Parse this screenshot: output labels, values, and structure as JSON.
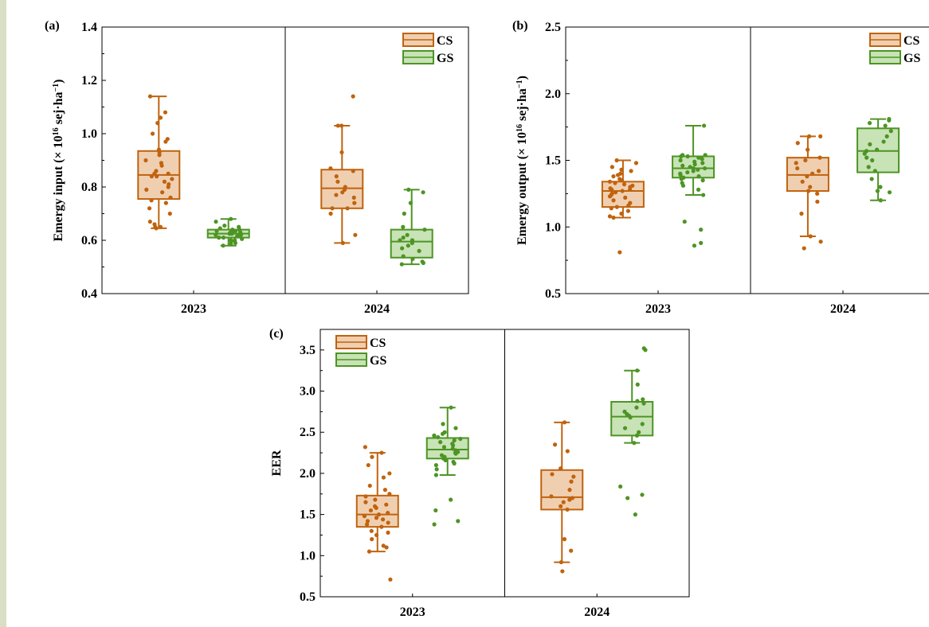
{
  "colors": {
    "CS_stroke": "#c0630e",
    "CS_fill": "#f0cfb1",
    "GS_stroke": "#4d9424",
    "GS_fill": "#c8e3b6",
    "CS_point": "#c0630e",
    "GS_point": "#4d9424"
  },
  "chart_data": [
    {
      "panel": "(a)",
      "type": "box",
      "ylabel_main": "Emergy input (× 10",
      "ylabel_exp": "16",
      "ylabel_unit": " sej·ha",
      "ylabel_unit_exp": "−1",
      "ylabel_close": ")",
      "ylim": [
        0.4,
        1.4
      ],
      "yticks": [
        0.4,
        0.6,
        0.8,
        1.0,
        1.2,
        1.4
      ],
      "ytick_labels": [
        "0.4",
        "0.6",
        "0.8",
        "1.0",
        "1.2",
        "1.4"
      ],
      "categories": [
        "2023",
        "2024"
      ],
      "legend": [
        "CS",
        "GS"
      ],
      "legend_position": "top-right",
      "series": [
        {
          "name": "CS",
          "boxes": [
            {
              "category": "2023",
              "whisker_low": 0.645,
              "q1": 0.755,
              "median": 0.845,
              "q3": 0.935,
              "whisker_high": 1.14,
              "points": [
                1.14,
                1.08,
                1.06,
                1.04,
                1.0,
                0.98,
                0.97,
                0.94,
                0.93,
                0.92,
                0.9,
                0.89,
                0.88,
                0.86,
                0.85,
                0.85,
                0.84,
                0.84,
                0.83,
                0.82,
                0.81,
                0.8,
                0.79,
                0.78,
                0.76,
                0.75,
                0.74,
                0.72,
                0.7,
                0.67,
                0.66,
                0.65,
                0.65,
                0.645
              ]
            },
            {
              "category": "2024",
              "whisker_low": 0.59,
              "q1": 0.72,
              "median": 0.795,
              "q3": 0.865,
              "whisker_high": 1.03,
              "points": [
                1.14,
                1.03,
                1.03,
                0.93,
                0.87,
                0.86,
                0.84,
                0.82,
                0.8,
                0.79,
                0.78,
                0.77,
                0.76,
                0.74,
                0.72,
                0.72,
                0.7,
                0.62,
                0.59
              ]
            }
          ]
        },
        {
          "name": "GS",
          "boxes": [
            {
              "category": "2023",
              "whisker_low": 0.58,
              "q1": 0.61,
              "median": 0.625,
              "q3": 0.64,
              "whisker_high": 0.68,
              "points": [
                0.68,
                0.67,
                0.655,
                0.65,
                0.645,
                0.64,
                0.64,
                0.635,
                0.635,
                0.63,
                0.63,
                0.63,
                0.625,
                0.625,
                0.625,
                0.62,
                0.62,
                0.62,
                0.615,
                0.615,
                0.61,
                0.61,
                0.605,
                0.6,
                0.6,
                0.595,
                0.59,
                0.585,
                0.58
              ]
            },
            {
              "category": "2024",
              "whisker_low": 0.51,
              "q1": 0.535,
              "median": 0.595,
              "q3": 0.64,
              "whisker_high": 0.79,
              "points": [
                0.79,
                0.78,
                0.74,
                0.7,
                0.65,
                0.64,
                0.62,
                0.61,
                0.6,
                0.6,
                0.59,
                0.58,
                0.57,
                0.56,
                0.54,
                0.53,
                0.52,
                0.515,
                0.51
              ]
            }
          ]
        }
      ]
    },
    {
      "panel": "(b)",
      "type": "box",
      "ylabel_main": "Emergy output (× 10",
      "ylabel_exp": "16",
      "ylabel_unit": " sej·ha",
      "ylabel_unit_exp": "−1",
      "ylabel_close": ")",
      "ylim": [
        0.5,
        2.5
      ],
      "yticks": [
        0.5,
        1.0,
        1.5,
        2.0,
        2.5
      ],
      "ytick_labels": [
        "0.5",
        "1.0",
        "1.5",
        "2.0",
        "2.5"
      ],
      "categories": [
        "2023",
        "2024"
      ],
      "legend": [
        "CS",
        "GS"
      ],
      "legend_position": "top-right",
      "series": [
        {
          "name": "CS",
          "boxes": [
            {
              "category": "2023",
              "whisker_low": 1.07,
              "q1": 1.15,
              "median": 1.27,
              "q3": 1.34,
              "whisker_high": 1.5,
              "points": [
                1.5,
                1.48,
                1.45,
                1.43,
                1.42,
                1.4,
                1.39,
                1.38,
                1.36,
                1.35,
                1.34,
                1.33,
                1.32,
                1.31,
                1.3,
                1.29,
                1.28,
                1.28,
                1.27,
                1.26,
                1.25,
                1.24,
                1.23,
                1.22,
                1.2,
                1.18,
                1.16,
                1.15,
                1.14,
                1.12,
                1.1,
                1.08,
                1.07,
                0.81
              ]
            },
            {
              "category": "2024",
              "whisker_low": 0.93,
              "q1": 1.27,
              "median": 1.39,
              "q3": 1.52,
              "whisker_high": 1.68,
              "points": [
                1.68,
                1.68,
                1.63,
                1.58,
                1.52,
                1.5,
                1.48,
                1.44,
                1.42,
                1.4,
                1.38,
                1.34,
                1.3,
                1.27,
                1.25,
                1.19,
                1.1,
                0.93,
                0.89,
                0.84
              ]
            }
          ]
        },
        {
          "name": "GS",
          "boxes": [
            {
              "category": "2023",
              "whisker_low": 1.24,
              "q1": 1.37,
              "median": 1.44,
              "q3": 1.53,
              "whisker_high": 1.76,
              "points": [
                1.76,
                1.54,
                1.54,
                1.53,
                1.53,
                1.52,
                1.51,
                1.5,
                1.49,
                1.48,
                1.47,
                1.46,
                1.45,
                1.44,
                1.44,
                1.43,
                1.42,
                1.41,
                1.4,
                1.39,
                1.38,
                1.37,
                1.36,
                1.35,
                1.33,
                1.31,
                1.28,
                1.24,
                1.04,
                0.98,
                0.88,
                0.86
              ]
            },
            {
              "category": "2024",
              "whisker_low": 1.2,
              "q1": 1.41,
              "median": 1.57,
              "q3": 1.74,
              "whisker_high": 1.81,
              "points": [
                1.81,
                1.8,
                1.78,
                1.76,
                1.72,
                1.68,
                1.64,
                1.62,
                1.58,
                1.57,
                1.55,
                1.52,
                1.5,
                1.45,
                1.42,
                1.36,
                1.3,
                1.27,
                1.26,
                1.2
              ]
            }
          ]
        }
      ]
    },
    {
      "panel": "(c)",
      "type": "box",
      "ylabel": "EER",
      "ylim": [
        0.5,
        3.75
      ],
      "yticks": [
        0.5,
        1.0,
        1.5,
        2.0,
        2.5,
        3.0,
        3.5
      ],
      "ytick_labels": [
        "0.5",
        "1.0",
        "1.5",
        "2.0",
        "2.5",
        "3.0",
        "3.5"
      ],
      "categories": [
        "2023",
        "2024"
      ],
      "legend": [
        "CS",
        "GS"
      ],
      "legend_position": "top-left",
      "series": [
        {
          "name": "CS",
          "boxes": [
            {
              "category": "2023",
              "whisker_low": 1.05,
              "q1": 1.35,
              "median": 1.5,
              "q3": 1.73,
              "whisker_high": 2.25,
              "points": [
                2.32,
                2.25,
                2.2,
                2.1,
                2.0,
                1.95,
                1.85,
                1.8,
                1.75,
                1.72,
                1.68,
                1.65,
                1.62,
                1.6,
                1.58,
                1.55,
                1.52,
                1.5,
                1.48,
                1.46,
                1.44,
                1.42,
                1.4,
                1.38,
                1.35,
                1.3,
                1.28,
                1.25,
                1.2,
                1.12,
                1.1,
                1.05,
                0.71
              ]
            },
            {
              "category": "2024",
              "whisker_low": 0.92,
              "q1": 1.56,
              "median": 1.71,
              "q3": 2.04,
              "whisker_high": 2.62,
              "points": [
                2.62,
                2.35,
                2.27,
                2.06,
                1.99,
                1.96,
                1.9,
                1.8,
                1.72,
                1.7,
                1.68,
                1.65,
                1.6,
                1.56,
                1.2,
                1.06,
                0.92,
                0.81
              ]
            }
          ]
        },
        {
          "name": "GS",
          "boxes": [
            {
              "category": "2023",
              "whisker_low": 1.98,
              "q1": 2.18,
              "median": 2.29,
              "q3": 2.43,
              "whisker_high": 2.8,
              "points": [
                2.8,
                2.6,
                2.55,
                2.5,
                2.48,
                2.46,
                2.44,
                2.42,
                2.4,
                2.38,
                2.36,
                2.34,
                2.32,
                2.3,
                2.28,
                2.26,
                2.25,
                2.24,
                2.22,
                2.2,
                2.18,
                2.16,
                2.14,
                2.12,
                2.1,
                2.05,
                1.98,
                1.68,
                1.55,
                1.42,
                1.38
              ]
            },
            {
              "category": "2024",
              "whisker_low": 2.37,
              "q1": 2.46,
              "median": 2.69,
              "q3": 2.87,
              "whisker_high": 3.25,
              "points": [
                3.52,
                3.5,
                3.25,
                3.08,
                2.9,
                2.88,
                2.85,
                2.8,
                2.75,
                2.72,
                2.7,
                2.68,
                2.6,
                2.55,
                2.5,
                2.46,
                2.37,
                1.84,
                1.74,
                1.7,
                1.5
              ]
            }
          ]
        }
      ]
    }
  ]
}
